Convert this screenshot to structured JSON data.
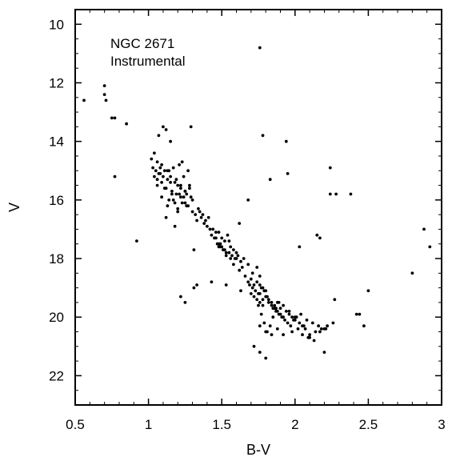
{
  "chart_data": {
    "type": "scatter",
    "title": "",
    "annotations": [
      "NGC 2671",
      "Instrumental"
    ],
    "xlabel": "B-V",
    "ylabel": "V",
    "xlim": [
      0.5,
      3.0
    ],
    "ylim": [
      23,
      9.5
    ],
    "y_inverted": true,
    "grid": false,
    "x_ticks": [
      0.5,
      1,
      1.5,
      2,
      2.5,
      3
    ],
    "x_tick_labels": [
      "0.5",
      "1",
      "1.5",
      "2",
      "2.5",
      "3"
    ],
    "y_ticks": [
      10,
      12,
      14,
      16,
      18,
      20,
      22
    ],
    "y_tick_labels": [
      "10",
      "12",
      "14",
      "16",
      "18",
      "20",
      "22"
    ],
    "marker_color": "#000000",
    "series": [
      {
        "x": [
          0.56,
          0.7,
          0.7,
          0.71,
          0.75,
          0.77,
          0.85,
          1.76,
          0.77,
          0.92,
          1.04,
          1.02,
          1.06,
          1.09,
          1.08,
          1.11,
          1.13,
          1.1,
          1.07,
          1.12,
          1.15,
          1.04,
          1.06,
          1.08,
          1.09,
          1.13,
          1.15,
          1.18,
          1.2,
          1.22,
          1.25,
          1.26,
          1.29,
          1.3,
          1.03,
          1.05,
          1.07,
          1.1,
          1.14,
          1.17,
          1.21,
          1.23,
          1.27,
          1.12,
          1.16,
          1.19,
          1.22,
          1.25,
          1.09,
          1.14,
          1.18,
          1.21,
          1.24,
          1.28,
          1.13,
          1.17,
          1.2,
          1.23,
          1.26,
          1.15,
          1.19,
          1.24,
          1.28,
          1.06,
          1.11,
          1.16,
          1.22,
          1.25,
          1.2,
          1.12,
          1.18,
          1.29,
          1.27,
          1.3,
          1.32,
          1.34,
          1.33,
          1.36,
          1.38,
          1.4,
          1.42,
          1.35,
          1.37,
          1.39,
          1.41,
          1.44,
          1.46,
          1.43,
          1.45,
          1.48,
          1.5,
          1.52,
          1.54,
          1.47,
          1.49,
          1.51,
          1.53,
          1.56,
          1.58,
          1.6,
          1.46,
          1.48,
          1.5,
          1.52,
          1.55,
          1.57,
          1.59,
          1.61,
          1.63,
          1.65,
          1.49,
          1.51,
          1.53,
          1.56,
          1.58,
          1.62,
          1.64,
          1.66,
          1.68,
          1.7,
          1.72,
          1.74,
          1.76,
          1.78,
          1.8,
          1.69,
          1.71,
          1.73,
          1.75,
          1.77,
          1.79,
          1.81,
          1.7,
          1.72,
          1.74,
          1.76,
          1.78,
          1.8,
          1.82,
          1.84,
          1.86,
          1.88,
          1.9,
          1.76,
          1.78,
          1.82,
          1.84,
          1.86,
          1.88,
          1.9,
          1.92,
          1.94,
          1.96,
          1.98,
          2.0,
          1.85,
          1.87,
          1.89,
          1.91,
          1.93,
          1.95,
          1.97,
          1.99,
          2.01,
          2.03,
          2.05,
          2.07,
          1.92,
          1.96,
          2.0,
          2.04,
          2.08,
          2.12,
          2.16,
          2.2,
          1.98,
          2.02,
          2.06,
          2.1,
          2.14,
          2.18,
          2.22,
          2.26,
          2.05,
          2.09,
          2.13,
          2.17,
          2.21,
          1.75,
          1.77,
          1.79,
          1.81,
          1.83,
          1.85,
          1.87,
          1.89,
          1.76,
          1.8,
          1.84,
          1.88,
          1.92,
          1.72,
          1.76,
          1.8,
          1.68,
          1.71,
          1.74,
          1.76,
          1.33,
          1.43,
          1.53,
          1.63,
          1.31,
          1.48,
          1.55,
          1.6,
          1.78,
          1.83,
          1.94,
          1.95,
          2.24,
          2.28,
          2.38,
          2.15,
          2.17,
          2.03,
          1.68,
          1.62,
          2.8,
          2.88,
          2.92,
          1.31,
          1.22,
          1.25,
          2.42,
          2.44,
          2.47,
          2.5,
          2.2,
          2.27,
          2.1,
          2.24
        ],
        "y": [
          12.6,
          12.1,
          12.4,
          12.6,
          13.2,
          13.2,
          13.4,
          10.8,
          15.2,
          17.4,
          14.4,
          14.6,
          14.7,
          14.8,
          14.9,
          15.0,
          15.0,
          13.5,
          13.8,
          13.6,
          14.0,
          15.2,
          15.3,
          15.1,
          15.4,
          15.3,
          15.2,
          15.4,
          15.5,
          15.6,
          15.7,
          15.8,
          15.9,
          16.0,
          14.9,
          15.0,
          15.1,
          15.2,
          15.0,
          14.9,
          14.8,
          14.7,
          15.0,
          15.6,
          15.7,
          15.8,
          15.5,
          15.7,
          15.9,
          16.0,
          16.1,
          15.8,
          15.9,
          15.5,
          16.2,
          16.0,
          16.3,
          16.1,
          16.2,
          15.4,
          15.3,
          15.2,
          15.6,
          15.5,
          15.6,
          15.8,
          15.9,
          16.1,
          16.4,
          16.6,
          16.9,
          13.5,
          16.2,
          16.4,
          16.5,
          16.3,
          16.7,
          16.6,
          16.8,
          16.9,
          17.0,
          16.4,
          16.5,
          16.7,
          16.6,
          17.0,
          17.1,
          17.2,
          17.3,
          17.1,
          17.3,
          17.4,
          17.2,
          17.5,
          17.6,
          17.7,
          17.8,
          17.6,
          17.7,
          17.8,
          17.3,
          17.5,
          17.6,
          17.7,
          17.8,
          17.9,
          18.0,
          17.9,
          18.1,
          18.0,
          17.5,
          17.7,
          17.9,
          18.0,
          18.2,
          18.4,
          18.3,
          18.6,
          18.8,
          18.7,
          18.9,
          18.8,
          18.9,
          19.0,
          19.1,
          18.9,
          19.0,
          19.1,
          19.2,
          19.0,
          19.1,
          19.3,
          19.2,
          19.3,
          19.4,
          19.5,
          19.6,
          19.3,
          19.4,
          19.5,
          19.6,
          19.5,
          19.7,
          19.2,
          19.4,
          19.5,
          19.6,
          19.7,
          19.8,
          19.9,
          20.0,
          19.8,
          19.9,
          20.0,
          20.1,
          19.7,
          19.8,
          19.9,
          20.0,
          20.1,
          20.2,
          20.3,
          20.1,
          20.0,
          20.2,
          20.3,
          20.4,
          19.6,
          19.8,
          20.0,
          19.9,
          20.1,
          20.2,
          20.3,
          20.4,
          20.5,
          20.4,
          20.3,
          20.6,
          20.5,
          20.4,
          20.3,
          20.2,
          20.6,
          20.7,
          20.8,
          20.5,
          20.4,
          19.6,
          19.9,
          20.2,
          20.5,
          20.3,
          20.0,
          19.7,
          19.5,
          20.3,
          20.5,
          20.6,
          20.4,
          20.6,
          21.0,
          21.2,
          21.4,
          18.2,
          18.5,
          18.3,
          18.6,
          18.9,
          18.8,
          18.9,
          19.1,
          17.7,
          17.6,
          17.4,
          18.0,
          13.8,
          15.3,
          14.0,
          15.1,
          15.8,
          15.8,
          15.8,
          17.2,
          17.3,
          17.6,
          16.0,
          16.8,
          18.5,
          17.0,
          17.6,
          19.0,
          19.3,
          19.5,
          19.9,
          19.9,
          20.3,
          19.1,
          21.2,
          19.4,
          20.7,
          14.9
        ]
      }
    ]
  }
}
